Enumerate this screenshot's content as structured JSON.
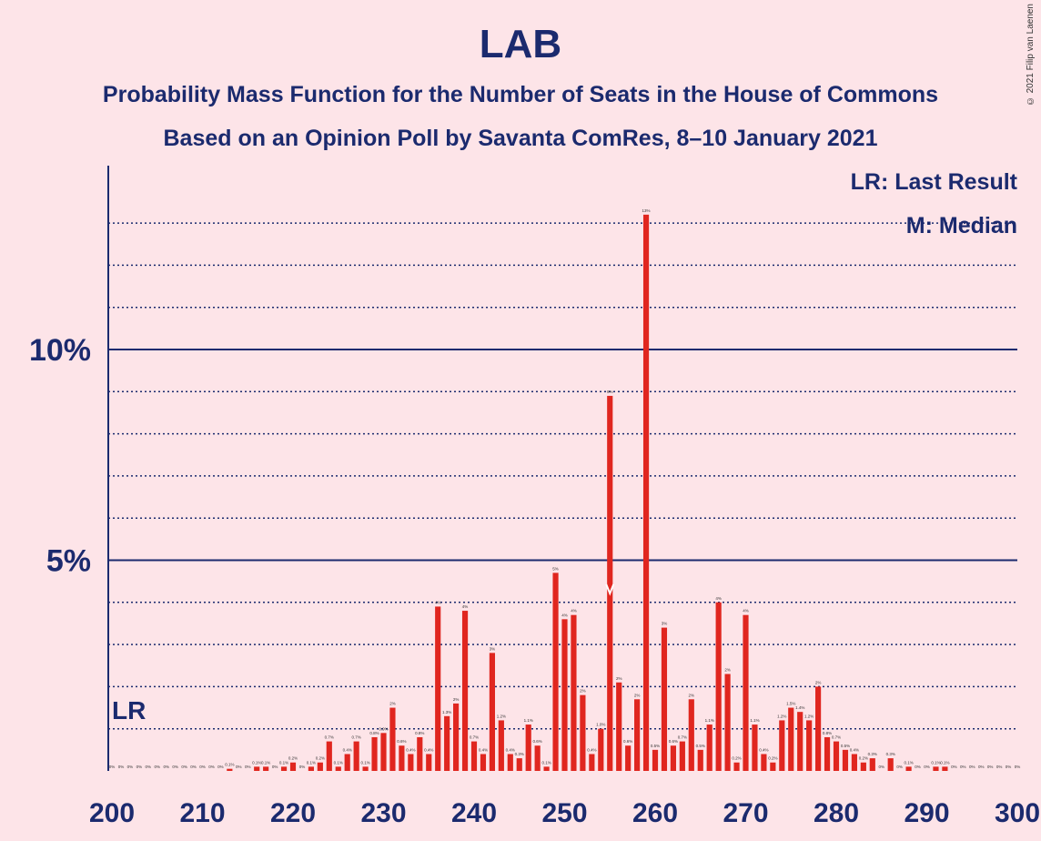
{
  "chart_data": {
    "type": "bar",
    "title": "LAB",
    "subtitle": "Probability Mass Function for the Number of Seats in the House of Commons",
    "subtitle2": "Based on an Opinion Poll by Savanta ComRes, 8–10 January 2021",
    "copyright": "© 2021 Filip van Laenen",
    "legend": [
      "LR: Last Result",
      "M: Median"
    ],
    "legend_position": "top-right",
    "last_result_label": "LR",
    "last_result_seat": 202,
    "median_seat": 255,
    "x_range": [
      200,
      300
    ],
    "x_ticks": [
      200,
      210,
      220,
      230,
      240,
      250,
      260,
      270,
      280,
      290,
      300
    ],
    "y_range": [
      0,
      14
    ],
    "y_ticks": [
      {
        "value": 5,
        "label": "5%"
      },
      {
        "value": 10,
        "label": "10%"
      }
    ],
    "bar_color": "#e0261f",
    "axis_color": "#1b2a6e",
    "x": [
      200,
      201,
      202,
      203,
      204,
      205,
      206,
      207,
      208,
      209,
      210,
      211,
      212,
      213,
      214,
      215,
      216,
      217,
      218,
      219,
      220,
      221,
      222,
      223,
      224,
      225,
      226,
      227,
      228,
      229,
      230,
      231,
      232,
      233,
      234,
      235,
      236,
      237,
      238,
      239,
      240,
      241,
      242,
      243,
      244,
      245,
      246,
      247,
      248,
      249,
      250,
      251,
      252,
      253,
      254,
      255,
      256,
      257,
      258,
      259,
      260,
      261,
      262,
      263,
      264,
      265,
      266,
      267,
      268,
      269,
      270,
      271,
      272,
      273,
      274,
      275,
      276,
      277,
      278,
      279,
      280,
      281,
      282,
      283,
      284,
      285,
      286,
      287,
      288,
      289,
      290,
      291,
      292,
      293,
      294,
      295,
      296,
      297,
      298,
      299,
      300
    ],
    "values": [
      0,
      0,
      0,
      0,
      0,
      0,
      0,
      0,
      0,
      0,
      0,
      0,
      0,
      0.05,
      0,
      0,
      0.1,
      0.1,
      0,
      0.1,
      0.2,
      0,
      0.1,
      0.2,
      0.7,
      0.1,
      0.4,
      0.7,
      0.1,
      0.8,
      0.9,
      1.5,
      0.6,
      0.4,
      0.8,
      0.4,
      3.9,
      1.3,
      1.6,
      3.8,
      0.7,
      0.4,
      2.8,
      1.2,
      0.4,
      0.3,
      1.1,
      0.6,
      0.1,
      4.7,
      3.6,
      3.7,
      1.8,
      0.4,
      1,
      8.9,
      2.1,
      0.6,
      1.7,
      13.2,
      0.5,
      3.4,
      0.6,
      0.7,
      1.7,
      0.5,
      1.1,
      4,
      2.3,
      0.2,
      3.7,
      1.1,
      0.4,
      0.2,
      1.2,
      1.5,
      1.4,
      1.2,
      2,
      0.8,
      0.7,
      0.5,
      0.4,
      0.2,
      0.3,
      0,
      0.3,
      0,
      0.1,
      0,
      0,
      0.1,
      0.1,
      0,
      0,
      0,
      0,
      0,
      0,
      0,
      0
    ],
    "data_labels": [
      "0%",
      "0%",
      "0%",
      "0%",
      "0%",
      "0%",
      "0%",
      "0%",
      "0%",
      "0%",
      "0%",
      "0%",
      "0%",
      "0.1%",
      "0%",
      "0%",
      "0.1%",
      "0.1%",
      "0%",
      "0.1%",
      "0.2%",
      "0%",
      "0.1%",
      "0.2%",
      "0.7%",
      "0.1%",
      "0.4%",
      "0.7%",
      "0.1%",
      "0.8%",
      "0.9%",
      "2%",
      "0.6%",
      "0.4%",
      "0.8%",
      "0.4%",
      "4%",
      "1.3%",
      "2%",
      "4%",
      "0.7%",
      "0.4%",
      "3%",
      "1.2%",
      "0.4%",
      "0.3%",
      "1.1%",
      "0.6%",
      "0.1%",
      "5%",
      "4%",
      "4%",
      "2%",
      "0.4%",
      "1.0%",
      "9%",
      "2%",
      "0.6%",
      "2%",
      "13%",
      "0.5%",
      "3%",
      "0.6%",
      "0.7%",
      "2%",
      "0.5%",
      "1.1%",
      "4%",
      "2%",
      "0.2%",
      "4%",
      "1.1%",
      "0.4%",
      "0.2%",
      "1.2%",
      "1.5%",
      "1.4%",
      "1.2%",
      "2%",
      "0.8%",
      "0.7%",
      "0.5%",
      "0.4%",
      "0.2%",
      "0.3%",
      "0%",
      "0.3%",
      "0%",
      "0.1%",
      "0%",
      "0%",
      "0.1%",
      "0.1%",
      "0%",
      "0%",
      "0%",
      "0%",
      "0%",
      "0%",
      "0%",
      "0%"
    ]
  }
}
